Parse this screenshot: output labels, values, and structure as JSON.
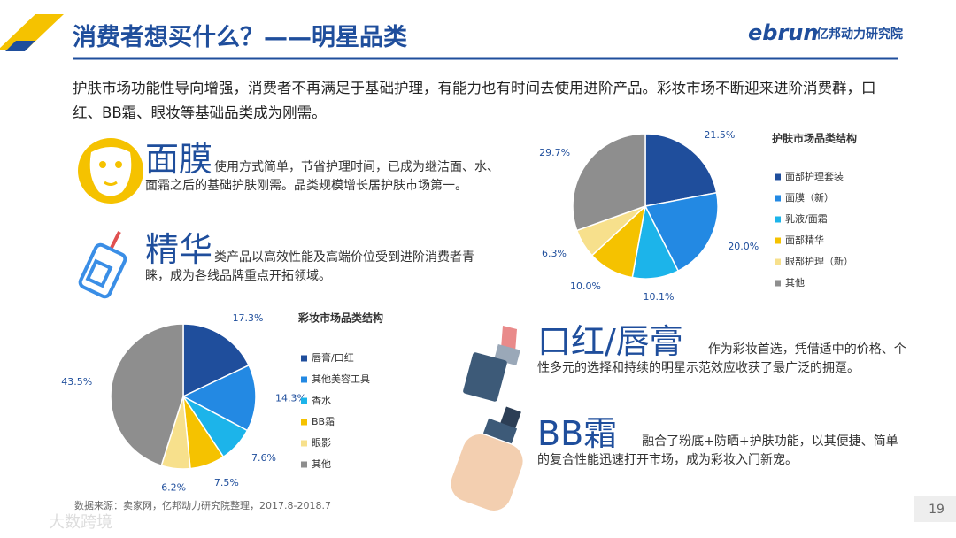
{
  "header": {
    "title": "消费者想买什么？——明星品类",
    "logo": "ebrun",
    "logo_text": "亿邦动力研究院"
  },
  "intro": "护肤市场功能性导向增强，消费者不再满足于基础护理，有能力也有时间去使用进阶产品。彩妆市场不断迎来进阶消费群，口红、BB霜、眼妆等基础品类成为刚需。",
  "highlights": [
    {
      "name": "面膜",
      "text": "使用方式简单，节省护理时间，已成为继洁面、水、面霜之后的基础护肤刚需。品类规模增长居护肤市场第一。"
    },
    {
      "name": "精华",
      "text": "类产品以高效性能及高端价位受到进阶消费者青睐，成为各线品牌重点开拓领域。"
    },
    {
      "name": "口红/唇膏",
      "text": "作为彩妆首选，凭借适中的价格、个性多元的选择和持续的明星示范效应收获了最广泛的拥趸。"
    },
    {
      "name": "BB霜",
      "text": "融合了粉底+防晒+护肤功能，以其便捷、简单的复合性能迅速打开市场，成为彩妆入门新宠。"
    }
  ],
  "chart_data": [
    {
      "type": "pie",
      "title": "护肤市场品类结构",
      "legend": "right",
      "categories": [
        "面部护理套装",
        "面膜（新）",
        "乳液/面霜",
        "面部精华",
        "眼部护理（新）",
        "其他"
      ],
      "values": [
        21.5,
        20.0,
        10.1,
        10.0,
        6.3,
        29.7
      ],
      "value_labels": [
        "21.5%",
        "20.0%",
        "10.1%",
        "10.0%",
        "6.3%",
        "29.7%"
      ],
      "colors": [
        "#1f4e9c",
        "#2389e3",
        "#1cb4ea",
        "#f5c200",
        "#f7e08c",
        "#8e8e8e"
      ]
    },
    {
      "type": "pie",
      "title": "彩妆市场品类结构",
      "legend": "right",
      "categories": [
        "唇膏/口红",
        "其他美容工具",
        "香水",
        "BB霜",
        "眼影",
        "其他"
      ],
      "values": [
        17.3,
        14.3,
        7.6,
        7.5,
        6.2,
        43.5
      ],
      "value_labels": [
        "17.3%",
        "14.3%",
        "7.6%",
        "7.5%",
        "6.2%",
        "43.5%"
      ],
      "colors": [
        "#1f4e9c",
        "#2389e3",
        "#1cb4ea",
        "#f5c200",
        "#f7e08c",
        "#8e8e8e"
      ]
    }
  ],
  "source": "数据来源：卖家网，亿邦动力研究院整理，2017.8-2018.7",
  "page_number": 19,
  "watermark": "大数跨境"
}
